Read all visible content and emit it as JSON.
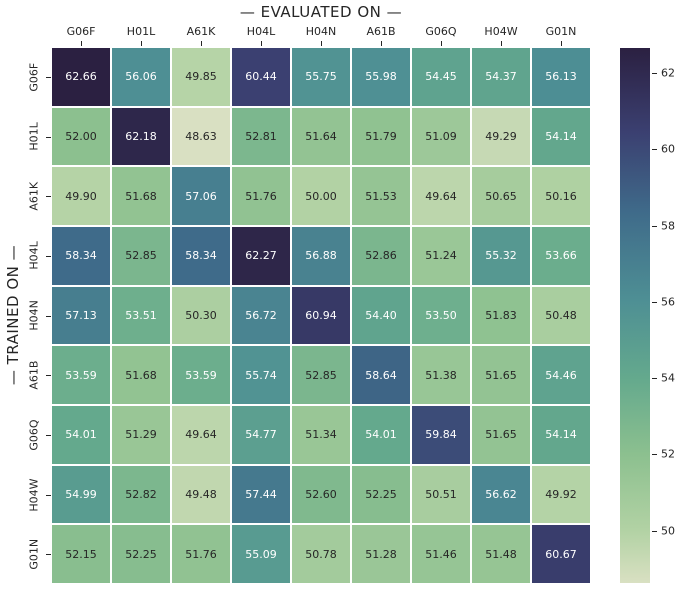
{
  "chart_data": {
    "type": "heatmap",
    "title": "— EVALUATED ON —",
    "ylabel": "— TRAINED ON —",
    "x_categories": [
      "G06F",
      "H01L",
      "A61K",
      "H04L",
      "H04N",
      "A61B",
      "G06Q",
      "H04W",
      "G01N"
    ],
    "y_categories": [
      "G06F",
      "H01L",
      "A61K",
      "H04L",
      "H04N",
      "A61B",
      "G06Q",
      "H04W",
      "G01N"
    ],
    "values": [
      [
        "62.66",
        "56.06",
        "49.85",
        "60.44",
        "55.75",
        "55.98",
        "54.45",
        "54.37",
        "56.13"
      ],
      [
        "52.00",
        "62.18",
        "48.63",
        "52.81",
        "51.64",
        "51.79",
        "51.09",
        "49.29",
        "54.14"
      ],
      [
        "49.90",
        "51.68",
        "57.06",
        "51.76",
        "50.00",
        "51.53",
        "49.64",
        "50.65",
        "50.16"
      ],
      [
        "58.34",
        "52.85",
        "58.34",
        "62.27",
        "56.88",
        "52.86",
        "51.24",
        "55.32",
        "53.66"
      ],
      [
        "57.13",
        "53.51",
        "50.30",
        "56.72",
        "60.94",
        "54.40",
        "53.50",
        "51.83",
        "50.48"
      ],
      [
        "53.59",
        "51.68",
        "53.59",
        "55.74",
        "52.85",
        "58.64",
        "51.38",
        "51.65",
        "54.46"
      ],
      [
        "54.01",
        "51.29",
        "49.64",
        "54.77",
        "51.34",
        "54.01",
        "59.84",
        "51.65",
        "54.14"
      ],
      [
        "54.99",
        "52.82",
        "49.48",
        "57.44",
        "52.60",
        "52.25",
        "50.51",
        "56.62",
        "49.92"
      ],
      [
        "52.15",
        "52.25",
        "51.76",
        "55.09",
        "50.78",
        "51.28",
        "51.46",
        "51.48",
        "60.67"
      ]
    ],
    "colorbar": {
      "vmin": 48.63,
      "vmax": 62.66,
      "ticks": [
        62,
        60,
        58,
        56,
        54,
        52,
        50
      ]
    },
    "colormap": {
      "stops": [
        {
          "t": 0.0,
          "color": "#d9e0c2"
        },
        {
          "t": 0.098,
          "color": "#b2d2a4"
        },
        {
          "t": 0.24,
          "color": "#8cc08f"
        },
        {
          "t": 0.383,
          "color": "#64a98d"
        },
        {
          "t": 0.529,
          "color": "#4e8f94"
        },
        {
          "t": 0.692,
          "color": "#3f6b8a"
        },
        {
          "t": 0.842,
          "color": "#3b4071"
        },
        {
          "t": 1.0,
          "color": "#2b2041"
        }
      ]
    },
    "annotation_text_colors": {
      "on_light": "#262626",
      "on_dark": "#ffffff"
    },
    "axis_text_color": "#262626"
  }
}
